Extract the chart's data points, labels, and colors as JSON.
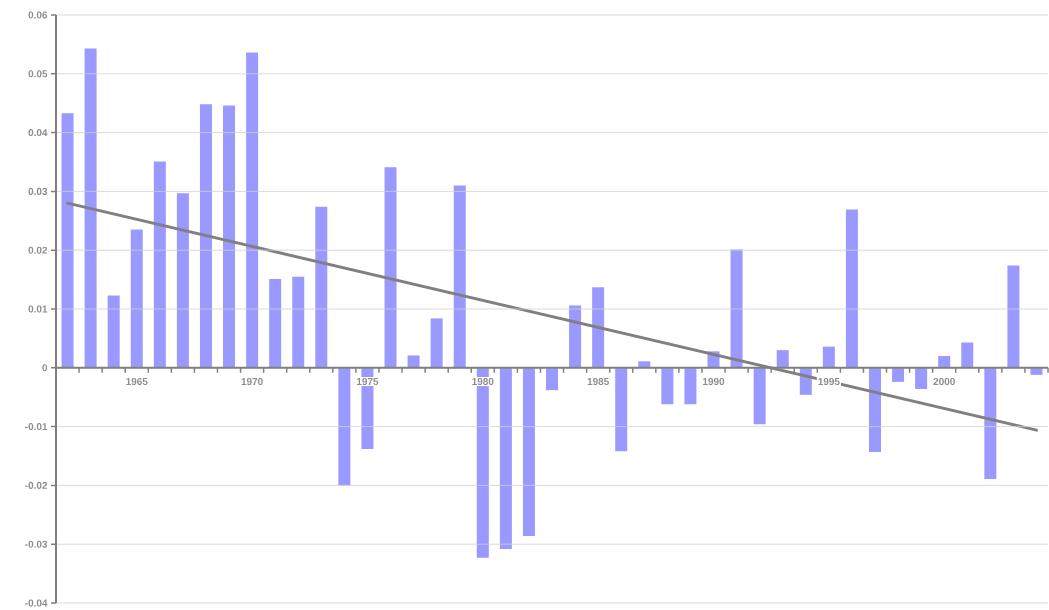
{
  "chart_data": {
    "type": "bar",
    "x": [
      1962,
      1963,
      1964,
      1965,
      1966,
      1967,
      1968,
      1969,
      1970,
      1971,
      1972,
      1973,
      1974,
      1975,
      1976,
      1977,
      1978,
      1979,
      1980,
      1981,
      1982,
      1983,
      1984,
      1985,
      1986,
      1987,
      1988,
      1989,
      1990,
      1991,
      1992,
      1993,
      1994,
      1995,
      1996,
      1997,
      1998,
      1999,
      2000,
      2001,
      2002,
      2003,
      2004
    ],
    "series": [
      {
        "color": "#9999ff",
        "values": [
          0.0433,
          0.0543,
          0.0123,
          0.0235,
          0.0351,
          0.0297,
          0.0448,
          0.0446,
          0.0536,
          0.0151,
          0.0155,
          0.0274,
          -0.02,
          -0.0138,
          0.0341,
          0.0021,
          0.0084,
          0.031,
          -0.0323,
          -0.0308,
          -0.0286,
          -0.0038,
          0.0106,
          0.0137,
          -0.0142,
          0.0011,
          -0.0062,
          -0.0062,
          0.0028,
          0.0201,
          -0.0096,
          0.003,
          -0.0046,
          0.0036,
          0.0269,
          -0.0143,
          -0.0024,
          -0.0036,
          0.002,
          0.0043,
          -0.0189,
          0.0174,
          -0.0012
        ]
      },
      {
        "type": "line",
        "color": "#808080",
        "x": [
          1962,
          2004
        ],
        "values": [
          0.028,
          -0.0106
        ]
      }
    ],
    "xlim": [
      1961.5,
      2004.5
    ],
    "xticks": [
      1965,
      1970,
      1975,
      1980,
      1985,
      1990,
      1995,
      2000
    ],
    "ylim": [
      -0.04,
      0.06
    ],
    "yticks": [
      -0.04,
      -0.03,
      -0.02,
      -0.01,
      0,
      0.01,
      0.02,
      0.03,
      0.04,
      0.05,
      0.06
    ],
    "grid": "y"
  }
}
